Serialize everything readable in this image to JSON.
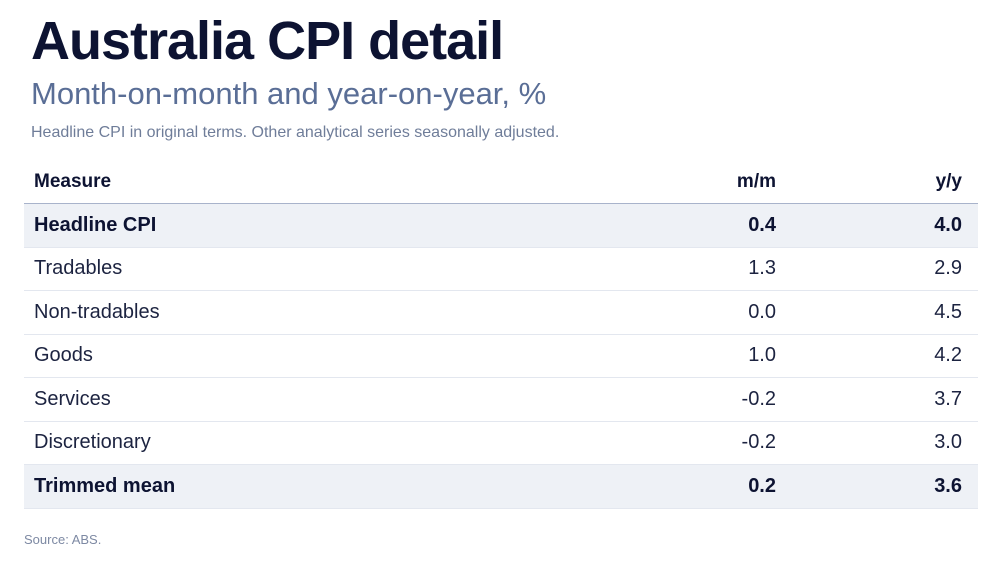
{
  "title": "Australia CPI detail",
  "subtitle": "Month-on-month and year-on-year, %",
  "note": "Headline CPI in original terms. Other analytical series seasonally adjusted.",
  "source": "Source: ABS.",
  "chart_data": {
    "type": "table",
    "columns": [
      "Measure",
      "m/m",
      "y/y"
    ],
    "rows": [
      {
        "measure": "Headline CPI",
        "mm": "0.4",
        "yy": "4.0",
        "highlight": true
      },
      {
        "measure": "Tradables",
        "mm": "1.3",
        "yy": "2.9",
        "highlight": false
      },
      {
        "measure": "Non-tradables",
        "mm": "0.0",
        "yy": "4.5",
        "highlight": false
      },
      {
        "measure": "Goods",
        "mm": "1.0",
        "yy": "4.2",
        "highlight": false
      },
      {
        "measure": "Services",
        "mm": "-0.2",
        "yy": "3.7",
        "highlight": false
      },
      {
        "measure": "Discretionary",
        "mm": "-0.2",
        "yy": "3.0",
        "highlight": false
      },
      {
        "measure": "Trimmed mean",
        "mm": "0.2",
        "yy": "3.6",
        "highlight": true
      }
    ]
  }
}
